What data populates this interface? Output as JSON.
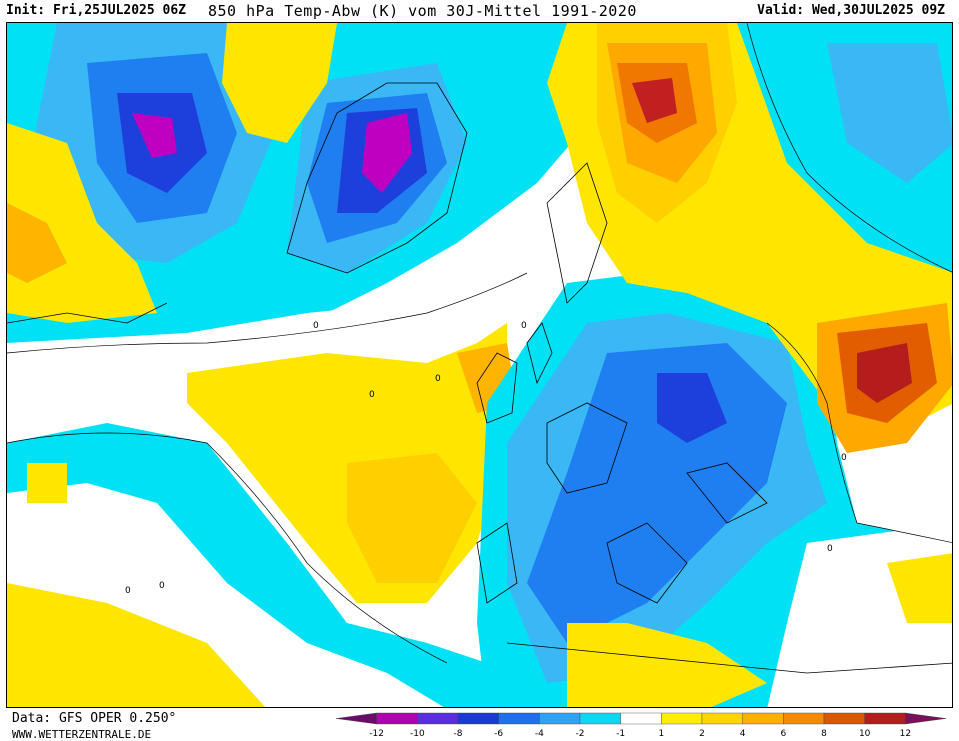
{
  "header": {
    "init": "Init: Fri,25JUL2025 06Z",
    "title": "850 hPa Temp-Abw (K) vom 30J-Mittel 1991-2020",
    "valid": "Valid: Wed,30JUL2025 09Z"
  },
  "footer": {
    "data_source": "Data: GFS OPER 0.250°",
    "website": "WWW.WETTERZENTRALE.DE"
  },
  "legend": {
    "ticks": [
      "-12",
      "-10",
      "-8",
      "-6",
      "-4",
      "-2",
      "-1",
      "1",
      "2",
      "4",
      "6",
      "8",
      "10",
      "12"
    ],
    "colors": [
      "#6a0d6a",
      "#b000b0",
      "#5a2de0",
      "#1a3ad8",
      "#1f6ff0",
      "#2ea3f5",
      "#0fd7f0",
      "#ffffff",
      "#ffee00",
      "#ffd500",
      "#ffaf00",
      "#f58a00",
      "#d95800",
      "#b51d1d",
      "#7a0f5a"
    ]
  },
  "map": {
    "contour_label": "0"
  }
}
